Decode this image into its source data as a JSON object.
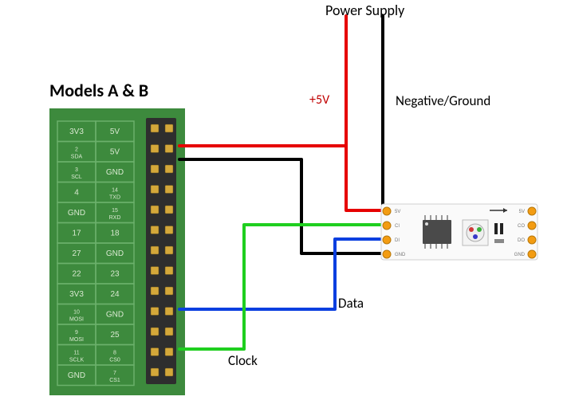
{
  "title": "Models A & B",
  "labels": {
    "power_supply": "Power Supply",
    "plus5v": "+5V",
    "neg_ground": "Negative/Ground",
    "data": "Data",
    "clock": "Clock"
  },
  "gpio": {
    "header_bg": "#3d8a3d",
    "cell_border": "#6bb06b",
    "cell_text": "#d8e8d0",
    "pin_outer": "#2e2e2e",
    "pin_inner": "#d4a83a",
    "rows": [
      [
        "3V3",
        "5V"
      ],
      [
        "2\nSDA",
        "5V"
      ],
      [
        "3\nSCL",
        "GND"
      ],
      [
        "4",
        "14\nTXD"
      ],
      [
        "GND",
        "15\nRXD"
      ],
      [
        "17",
        "18"
      ],
      [
        "27",
        "GND"
      ],
      [
        "22",
        "23"
      ],
      [
        "3V3",
        "24"
      ],
      [
        "10\nMOSI",
        "GND"
      ],
      [
        "9\nMOSI",
        "25"
      ],
      [
        "11\nSCLK",
        "8\nCS0"
      ],
      [
        "GND",
        "7\nCS1"
      ]
    ]
  },
  "wires": {
    "red": {
      "color": "#e60000",
      "width": 4
    },
    "black": {
      "color": "#000000",
      "width": 4
    },
    "green": {
      "color": "#1fcf1f",
      "width": 4
    },
    "blue": {
      "color": "#0b3fe0",
      "width": 4
    }
  },
  "led_module": {
    "bg": "#fafafa",
    "border": "#c9c9c9",
    "pad_color": "#f39c12",
    "chip_body": "#4a4a4a",
    "chip_leg": "#888888",
    "rgb_led": {
      "border": "#999",
      "r": "#d03838",
      "g": "#3ab03a",
      "b": "#3838c8",
      "center": "#eee"
    },
    "left_pins": [
      "5V",
      "CI",
      "DI",
      "GND"
    ],
    "right_pins": [
      "5V",
      "CO",
      "DO",
      "GND"
    ],
    "text_color": "#777",
    "arrow_color": "#333"
  },
  "fonts": {
    "title_size": 22,
    "title_weight": "bold",
    "label_size": 18,
    "small_label_size": 15,
    "gpio_cell_size": 9,
    "led_pin_size": 6
  },
  "colors": {
    "plus5v_text": "#c00000"
  }
}
